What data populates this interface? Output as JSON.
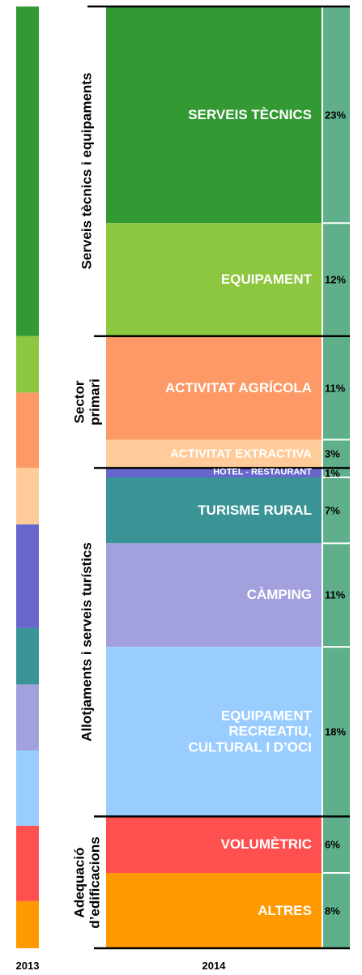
{
  "chart_data": {
    "type": "stacked-column",
    "categories": [
      "2013",
      "2014"
    ],
    "groups": [
      {
        "name": "Serveis tècnics i equipaments",
        "series": [
          {
            "name": "SERVEIS TÈCNICS",
            "color": "#339933",
            "values": [
              35,
              23
            ],
            "value_labels": [
              null,
              "23%"
            ]
          },
          {
            "name": "EQUIPAMENT",
            "color": "#8dc63f",
            "values": [
              6,
              12
            ],
            "value_labels": [
              null,
              "12%"
            ]
          }
        ]
      },
      {
        "name": "Sector primari",
        "series": [
          {
            "name": "ACTIVITAT AGRÍCOLA",
            "color": "#fd9966",
            "values": [
              8,
              11
            ],
            "value_labels": [
              null,
              "11%"
            ]
          },
          {
            "name": "ACTIVITAT EXTRACTIVA",
            "color": "#ffcc99",
            "values": [
              6,
              3
            ],
            "value_labels": [
              null,
              "3%"
            ]
          }
        ]
      },
      {
        "name": "Allotjaments i serveis turístics",
        "series": [
          {
            "name": "HOTEL - RESTAURANT",
            "color": "#6666cc",
            "values": [
              11,
              1
            ],
            "value_labels": [
              null,
              "1%"
            ]
          },
          {
            "name": "TURISME RURAL",
            "color": "#3a9496",
            "values": [
              6,
              7
            ],
            "value_labels": [
              null,
              "7%"
            ]
          },
          {
            "name": "CÀMPING",
            "color": "#a3a1dd",
            "values": [
              7,
              11
            ],
            "value_labels": [
              null,
              "11%"
            ]
          },
          {
            "name": "EQUIPAMENT RECREATIU, CULTURAL I D’OCI",
            "color": "#99ccff",
            "values": [
              8,
              18
            ],
            "value_labels": [
              null,
              "18%"
            ]
          }
        ]
      },
      {
        "name": "Adequació d’edificacions",
        "series": [
          {
            "name": "VOLUMÈTRIC",
            "color": "#ff5050",
            "values": [
              8,
              6
            ],
            "value_labels": [
              null,
              "6%"
            ]
          },
          {
            "name": "ALTRES",
            "color": "#ff9900",
            "values": [
              5,
              8
            ],
            "value_labels": [
              null,
              "8%"
            ]
          }
        ]
      }
    ]
  }
}
